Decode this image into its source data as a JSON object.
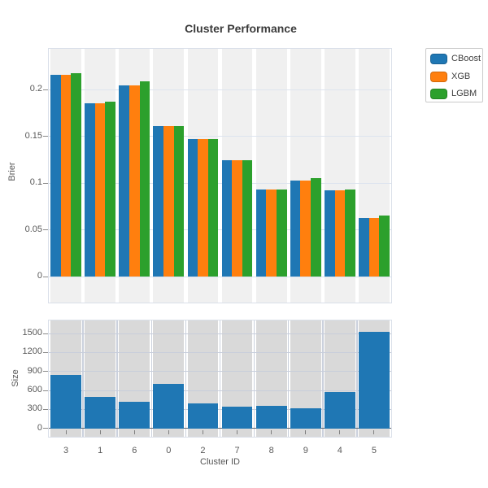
{
  "title": "Cluster Performance",
  "legend": {
    "items": [
      {
        "label": "CBoost",
        "color": "#1f77b4"
      },
      {
        "label": "XGB",
        "color": "#ff7f0e"
      },
      {
        "label": "LGBM",
        "color": "#2ca02c"
      }
    ]
  },
  "axes": {
    "top_ylabel": "Brier",
    "bottom_ylabel": "Size",
    "xlabel": "Cluster ID"
  },
  "colors": {
    "cboost_blue": "#1f77b4",
    "xgb_orange": "#ff7f0e",
    "lgbm_green": "#2ca02c",
    "top_band": "#f0f0f0",
    "bottom_band": "#d9d9d9",
    "top_grid": "#dde4ef",
    "bottom_grid": "#c8cedb",
    "bottom_vline": "#cbd1dd"
  },
  "chart_data": [
    {
      "type": "bar",
      "title": "Cluster Performance",
      "categories": [
        "3",
        "1",
        "6",
        "0",
        "2",
        "7",
        "8",
        "9",
        "4",
        "5"
      ],
      "series": [
        {
          "name": "CBoost",
          "color": "#1f77b4",
          "values": [
            0.216,
            0.185,
            0.204,
            0.161,
            0.147,
            0.124,
            0.093,
            0.103,
            0.092,
            0.063
          ]
        },
        {
          "name": "XGB",
          "color": "#ff7f0e",
          "values": [
            0.216,
            0.185,
            0.204,
            0.161,
            0.147,
            0.124,
            0.093,
            0.103,
            0.092,
            0.063
          ]
        },
        {
          "name": "LGBM",
          "color": "#2ca02c",
          "values": [
            0.217,
            0.187,
            0.209,
            0.161,
            0.147,
            0.124,
            0.093,
            0.105,
            0.093,
            0.065
          ]
        }
      ],
      "xlabel": "",
      "ylabel": "Brier",
      "ylim": [
        -0.0278,
        0.2435
      ],
      "yticks": [
        {
          "v": 0,
          "label": "0"
        },
        {
          "v": 0.05,
          "label": "0.05"
        },
        {
          "v": 0.1,
          "label": "0.1"
        },
        {
          "v": 0.15,
          "label": "0.15"
        },
        {
          "v": 0.2,
          "label": "0.2"
        }
      ],
      "grid": true,
      "legend_entries": [
        "CBoost",
        "XGB",
        "LGBM"
      ],
      "legend_position": "outside-top-right"
    },
    {
      "type": "bar",
      "title": "",
      "categories": [
        "3",
        "1",
        "6",
        "0",
        "2",
        "7",
        "8",
        "9",
        "4",
        "5"
      ],
      "series": [
        {
          "name": "Size",
          "color": "#1f77b4",
          "values": [
            850,
            500,
            420,
            700,
            390,
            345,
            358,
            320,
            570,
            1525
          ]
        }
      ],
      "xlabel": "Cluster ID",
      "ylabel": "Size",
      "ylim": [
        -132,
        1706
      ],
      "yticks": [
        {
          "v": 0,
          "label": "0"
        },
        {
          "v": 300,
          "label": "300"
        },
        {
          "v": 600,
          "label": "600"
        },
        {
          "v": 900,
          "label": "900"
        },
        {
          "v": 1200,
          "label": "1200"
        },
        {
          "v": 1500,
          "label": "1500"
        }
      ],
      "grid": true,
      "legend_position": "none"
    }
  ]
}
